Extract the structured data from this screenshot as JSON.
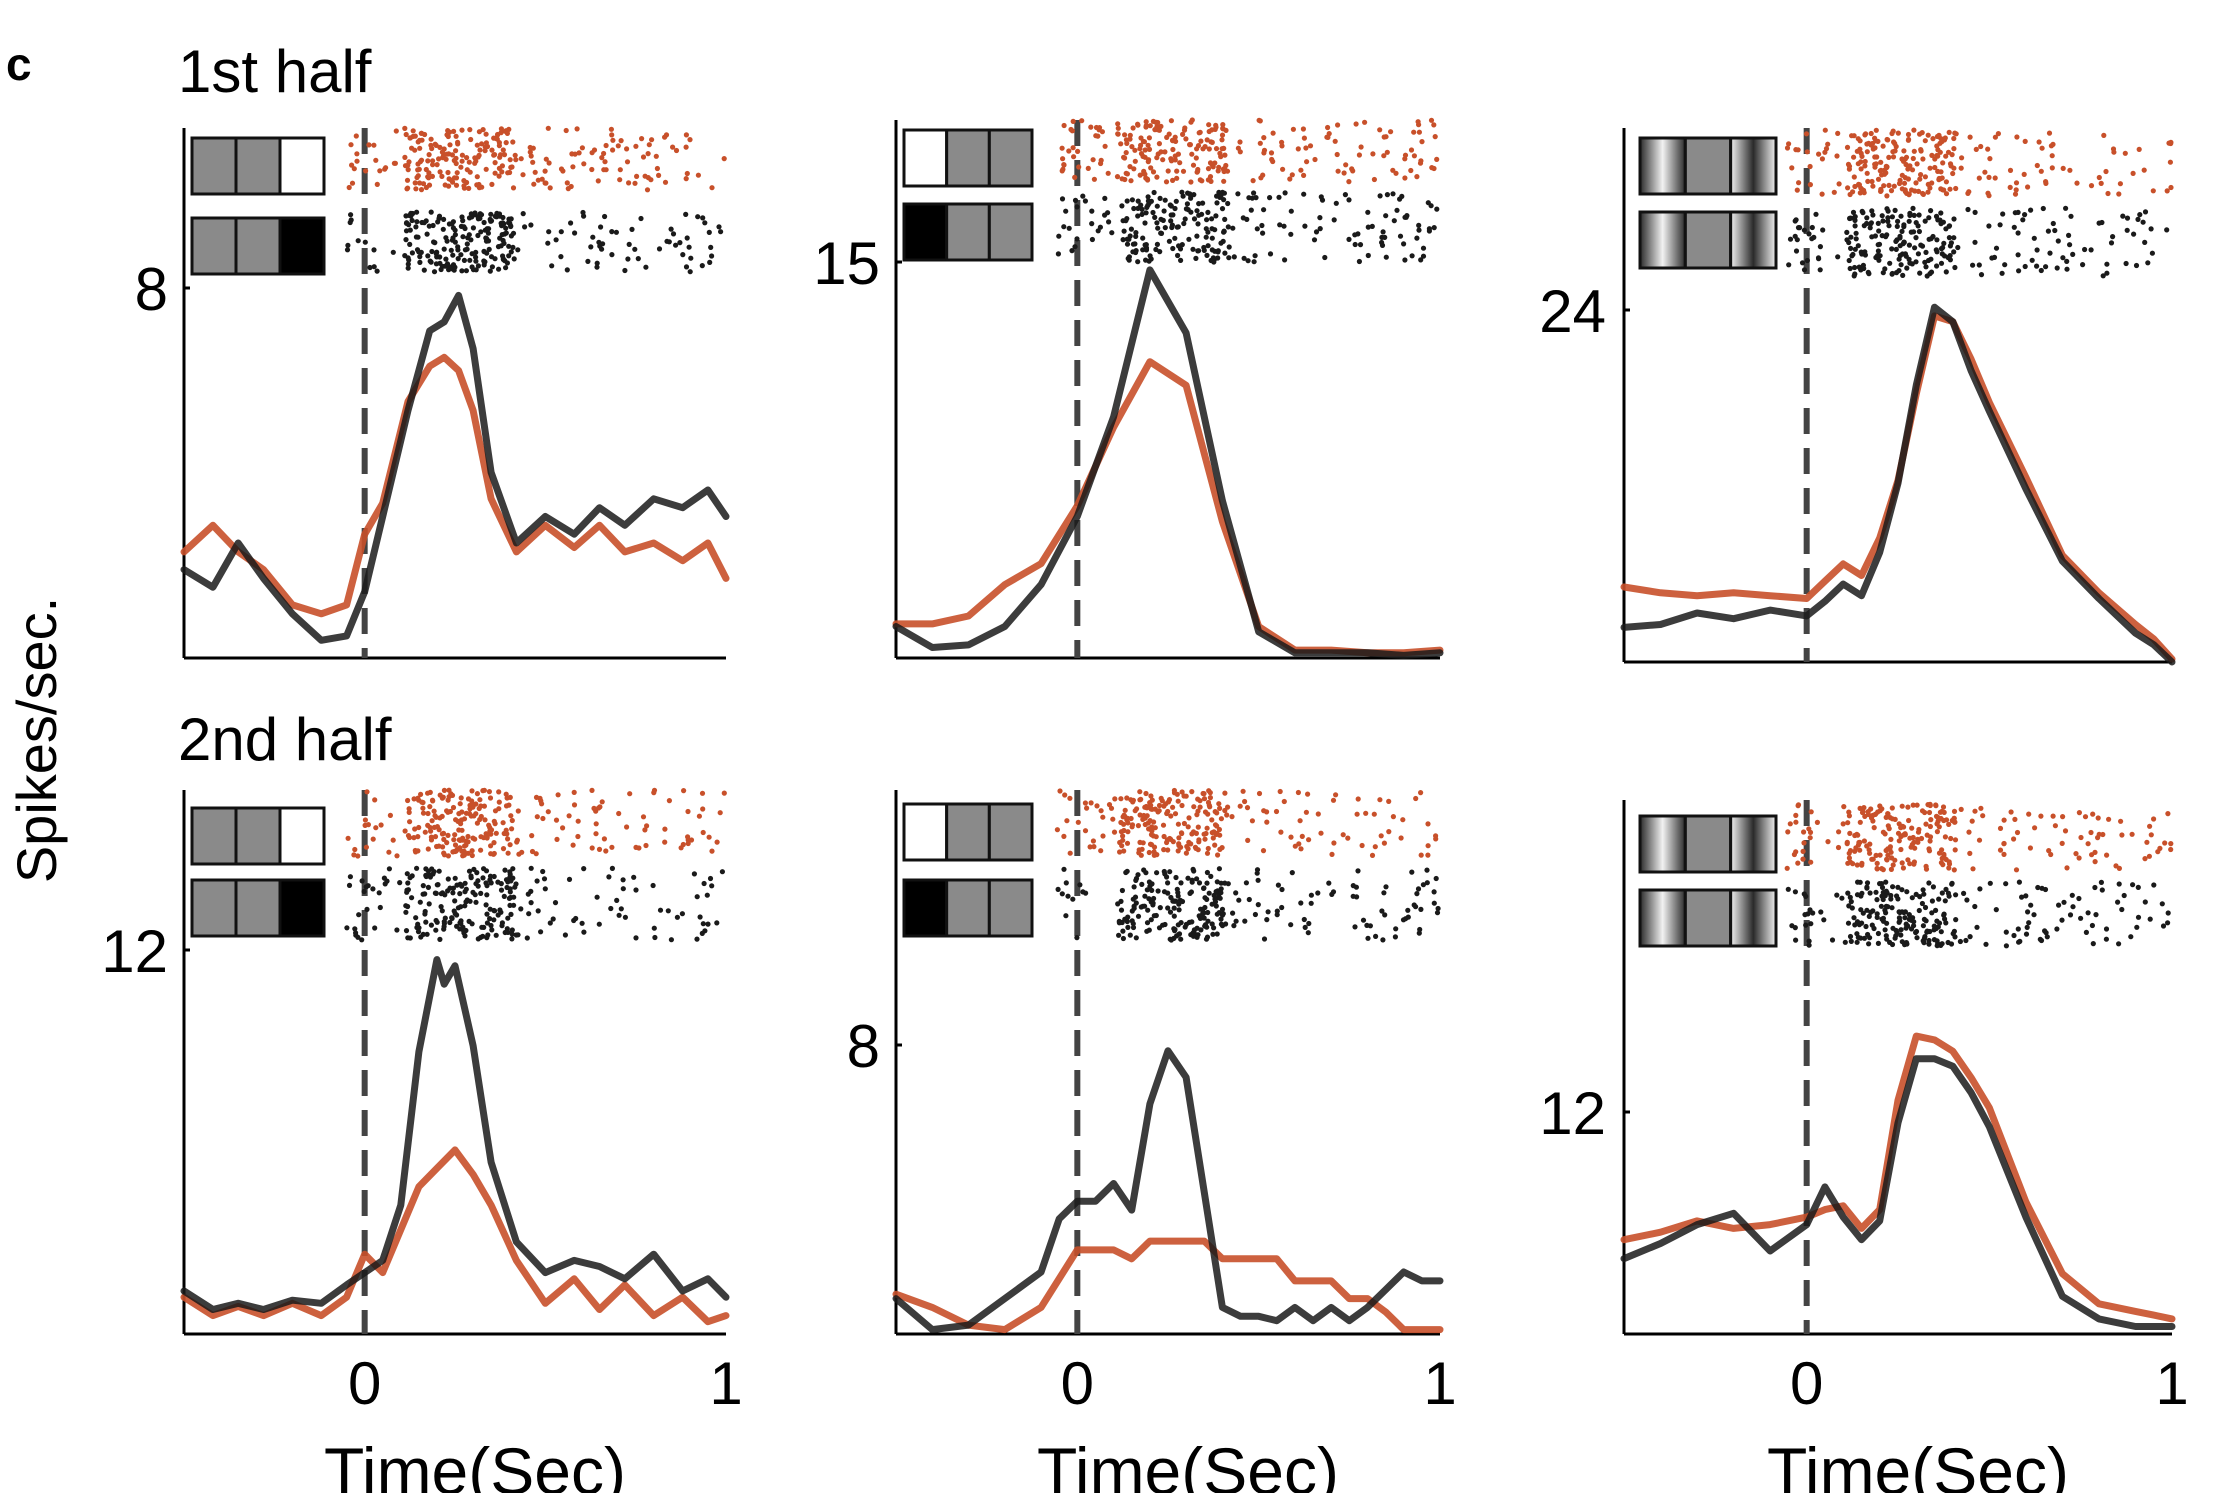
{
  "panel_letter": "c",
  "row_titles": [
    "1st half",
    "2nd half"
  ],
  "shared_ylabel": "Spikes/sec.",
  "colors": {
    "condition_a": "#c8502a",
    "condition_b": "#1a1a1a",
    "stim_gray": "#8a8a8a",
    "onset_line": "#444444"
  },
  "chart_data": [
    {
      "type": "line",
      "row": "1st half",
      "column": 1,
      "xlabel": "",
      "ylabel": "",
      "xlim": [
        -0.5,
        1
      ],
      "xticks": [],
      "y_tick_label": "8",
      "stimulus_icons": [
        "gray-gray-white",
        "gray-gray-black"
      ],
      "series": [
        {
          "color": "orange",
          "x": [
            -0.5,
            -0.42,
            -0.35,
            -0.28,
            -0.2,
            -0.12,
            -0.05,
            0,
            0.05,
            0.12,
            0.18,
            0.22,
            0.26,
            0.3,
            0.35,
            0.42,
            0.5,
            0.58,
            0.65,
            0.72,
            0.8,
            0.88,
            0.95,
            1.0
          ],
          "y": [
            2.4,
            3.0,
            2.4,
            2.0,
            1.2,
            1.0,
            1.2,
            2.8,
            3.5,
            5.8,
            6.6,
            6.8,
            6.5,
            5.6,
            3.6,
            2.4,
            3.0,
            2.5,
            3.0,
            2.4,
            2.6,
            2.2,
            2.6,
            1.8
          ]
        },
        {
          "color": "black",
          "x": [
            -0.5,
            -0.42,
            -0.35,
            -0.28,
            -0.2,
            -0.12,
            -0.05,
            0,
            0.05,
            0.12,
            0.18,
            0.22,
            0.26,
            0.3,
            0.35,
            0.42,
            0.5,
            0.58,
            0.65,
            0.72,
            0.8,
            0.88,
            0.95,
            1.0
          ],
          "y": [
            2.0,
            1.6,
            2.6,
            1.8,
            1.0,
            0.4,
            0.5,
            1.5,
            3.2,
            5.6,
            7.4,
            7.6,
            8.2,
            7.0,
            4.2,
            2.6,
            3.2,
            2.8,
            3.4,
            3.0,
            3.6,
            3.4,
            3.8,
            3.2
          ]
        }
      ]
    },
    {
      "type": "line",
      "row": "1st half",
      "column": 2,
      "xlabel": "",
      "ylabel": "",
      "xlim": [
        -0.5,
        1
      ],
      "xticks": [],
      "y_tick_label": "15",
      "stimulus_icons": [
        "white-gray-gray",
        "black-gray-gray"
      ],
      "series": [
        {
          "color": "orange",
          "x": [
            -0.5,
            -0.4,
            -0.3,
            -0.2,
            -0.1,
            0,
            0.1,
            0.2,
            0.3,
            0.4,
            0.5,
            0.6,
            0.7,
            0.8,
            0.9,
            1.0
          ],
          "y": [
            1.3,
            1.3,
            1.6,
            2.8,
            3.6,
            5.8,
            8.8,
            11.3,
            10.4,
            5.2,
            1.2,
            0.3,
            0.3,
            0.2,
            0.2,
            0.3
          ]
        },
        {
          "color": "black",
          "x": [
            -0.5,
            -0.4,
            -0.3,
            -0.2,
            -0.1,
            0,
            0.1,
            0.2,
            0.3,
            0.4,
            0.5,
            0.6,
            0.7,
            0.8,
            0.9,
            1.0
          ],
          "y": [
            1.2,
            0.4,
            0.5,
            1.2,
            2.8,
            5.4,
            9.2,
            14.8,
            12.4,
            6.0,
            1.0,
            0.2,
            0.2,
            0.2,
            0.1,
            0.2
          ]
        }
      ]
    },
    {
      "type": "line",
      "row": "1st half",
      "column": 3,
      "xlabel": "",
      "ylabel": "",
      "xlim": [
        -0.5,
        1
      ],
      "xticks": [],
      "y_tick_label": "24",
      "stimulus_icons": [
        "shaded-gray-shaded",
        "shaded-gray-shaded"
      ],
      "series": [
        {
          "color": "orange",
          "x": [
            -0.5,
            -0.4,
            -0.3,
            -0.2,
            -0.1,
            0,
            0.05,
            0.1,
            0.15,
            0.2,
            0.25,
            0.3,
            0.35,
            0.4,
            0.45,
            0.5,
            0.6,
            0.7,
            0.8,
            0.9,
            0.95,
            1.0
          ],
          "y": [
            5.2,
            4.8,
            4.6,
            4.8,
            4.6,
            4.4,
            5.6,
            6.8,
            6.0,
            8.6,
            12.6,
            18.6,
            24.0,
            23.6,
            21.0,
            18.0,
            12.8,
            7.4,
            4.8,
            2.6,
            1.6,
            0.2
          ]
        },
        {
          "color": "black",
          "x": [
            -0.5,
            -0.4,
            -0.3,
            -0.2,
            -0.1,
            0,
            0.05,
            0.1,
            0.15,
            0.2,
            0.25,
            0.3,
            0.35,
            0.4,
            0.45,
            0.5,
            0.6,
            0.7,
            0.8,
            0.9,
            0.95,
            1.0
          ],
          "y": [
            2.4,
            2.6,
            3.4,
            3.0,
            3.6,
            3.2,
            4.2,
            5.4,
            4.6,
            7.6,
            12.4,
            19.2,
            24.6,
            23.6,
            20.2,
            17.4,
            12.0,
            7.0,
            4.4,
            2.0,
            1.2,
            0.0
          ]
        }
      ]
    },
    {
      "type": "line",
      "row": "2nd half",
      "column": 1,
      "xlabel": "Time(Sec)",
      "ylabel": "",
      "xlim": [
        -0.5,
        1
      ],
      "xticks": [
        "0",
        "1"
      ],
      "y_tick_label": "12",
      "stimulus_icons": [
        "gray-gray-white",
        "gray-gray-black"
      ],
      "series": [
        {
          "color": "orange",
          "x": [
            -0.5,
            -0.42,
            -0.35,
            -0.28,
            -0.2,
            -0.12,
            -0.05,
            0,
            0.05,
            0.1,
            0.15,
            0.2,
            0.25,
            0.3,
            0.35,
            0.42,
            0.5,
            0.58,
            0.65,
            0.72,
            0.8,
            0.88,
            0.95,
            1.0
          ],
          "y": [
            1.2,
            0.6,
            0.9,
            0.6,
            1.0,
            0.6,
            1.2,
            2.6,
            2.0,
            3.4,
            4.8,
            5.4,
            6.0,
            5.2,
            4.2,
            2.4,
            1.0,
            1.8,
            0.8,
            1.6,
            0.6,
            1.2,
            0.4,
            0.6
          ]
        },
        {
          "color": "black",
          "x": [
            -0.5,
            -0.42,
            -0.35,
            -0.28,
            -0.2,
            -0.12,
            -0.05,
            0,
            0.05,
            0.1,
            0.15,
            0.2,
            0.22,
            0.25,
            0.3,
            0.35,
            0.42,
            0.5,
            0.58,
            0.65,
            0.72,
            0.8,
            0.88,
            0.95,
            1.0
          ],
          "y": [
            1.4,
            0.8,
            1.0,
            0.8,
            1.1,
            1.0,
            1.6,
            2.0,
            2.4,
            4.2,
            9.2,
            12.2,
            11.4,
            12.0,
            9.4,
            5.6,
            3.0,
            2.0,
            2.4,
            2.2,
            1.8,
            2.6,
            1.4,
            1.8,
            1.2
          ]
        }
      ]
    },
    {
      "type": "line",
      "row": "2nd half",
      "column": 2,
      "xlabel": "Time(Sec)",
      "ylabel": "",
      "xlim": [
        -0.5,
        1
      ],
      "xticks": [
        "0",
        "1"
      ],
      "y_tick_label": "8",
      "stimulus_icons": [
        "white-gray-gray",
        "black-gray-gray"
      ],
      "series": [
        {
          "color": "orange",
          "x": [
            -0.5,
            -0.4,
            -0.3,
            -0.2,
            -0.1,
            0,
            0.05,
            0.1,
            0.15,
            0.2,
            0.25,
            0.3,
            0.35,
            0.4,
            0.45,
            0.5,
            0.55,
            0.6,
            0.65,
            0.7,
            0.75,
            0.8,
            0.85,
            0.9,
            0.95,
            1.0
          ],
          "y": [
            0.9,
            0.6,
            0.2,
            0.1,
            0.6,
            1.9,
            1.9,
            1.9,
            1.7,
            2.1,
            2.1,
            2.1,
            2.1,
            1.7,
            1.7,
            1.7,
            1.7,
            1.2,
            1.2,
            1.2,
            0.8,
            0.8,
            0.5,
            0.1,
            0.1,
            0.1
          ]
        },
        {
          "color": "black",
          "x": [
            -0.5,
            -0.4,
            -0.3,
            -0.2,
            -0.1,
            -0.05,
            0,
            0.05,
            0.1,
            0.15,
            0.2,
            0.25,
            0.3,
            0.35,
            0.4,
            0.45,
            0.5,
            0.55,
            0.6,
            0.65,
            0.7,
            0.75,
            0.8,
            0.85,
            0.9,
            0.95,
            1.0
          ],
          "y": [
            0.8,
            0.1,
            0.2,
            0.8,
            1.4,
            2.6,
            3.0,
            3.0,
            3.4,
            2.8,
            5.2,
            6.4,
            5.8,
            3.2,
            0.6,
            0.4,
            0.4,
            0.3,
            0.6,
            0.3,
            0.6,
            0.3,
            0.6,
            1.0,
            1.4,
            1.2,
            1.2
          ]
        }
      ]
    },
    {
      "type": "line",
      "row": "2nd half",
      "column": 3,
      "xlabel": "Time(Sec)",
      "ylabel": "",
      "xlim": [
        -0.5,
        1
      ],
      "xticks": [
        "0",
        "1"
      ],
      "y_tick_label": "12",
      "stimulus_icons": [
        "shaded-gray-shaded",
        "shaded-gray-shaded"
      ],
      "series": [
        {
          "color": "orange",
          "x": [
            -0.5,
            -0.4,
            -0.3,
            -0.2,
            -0.1,
            0,
            0.05,
            0.1,
            0.15,
            0.2,
            0.25,
            0.3,
            0.35,
            0.4,
            0.45,
            0.5,
            0.6,
            0.7,
            0.8,
            0.9,
            0.95,
            1.0
          ],
          "y": [
            5.0,
            5.4,
            6.0,
            5.6,
            5.8,
            6.2,
            6.6,
            6.8,
            5.6,
            6.6,
            12.4,
            15.8,
            15.6,
            15.0,
            13.6,
            12.0,
            7.0,
            3.2,
            1.6,
            1.2,
            1.0,
            0.8
          ]
        },
        {
          "color": "black",
          "x": [
            -0.5,
            -0.4,
            -0.3,
            -0.2,
            -0.1,
            0,
            0.05,
            0.1,
            0.15,
            0.2,
            0.25,
            0.3,
            0.35,
            0.4,
            0.45,
            0.5,
            0.6,
            0.7,
            0.8,
            0.9,
            0.95,
            1.0
          ],
          "y": [
            4.0,
            4.8,
            5.8,
            6.4,
            4.4,
            5.8,
            7.8,
            6.2,
            5.0,
            6.0,
            11.2,
            14.6,
            14.6,
            14.2,
            12.8,
            11.0,
            6.2,
            2.0,
            0.8,
            0.4,
            0.4,
            0.4
          ]
        }
      ]
    }
  ]
}
